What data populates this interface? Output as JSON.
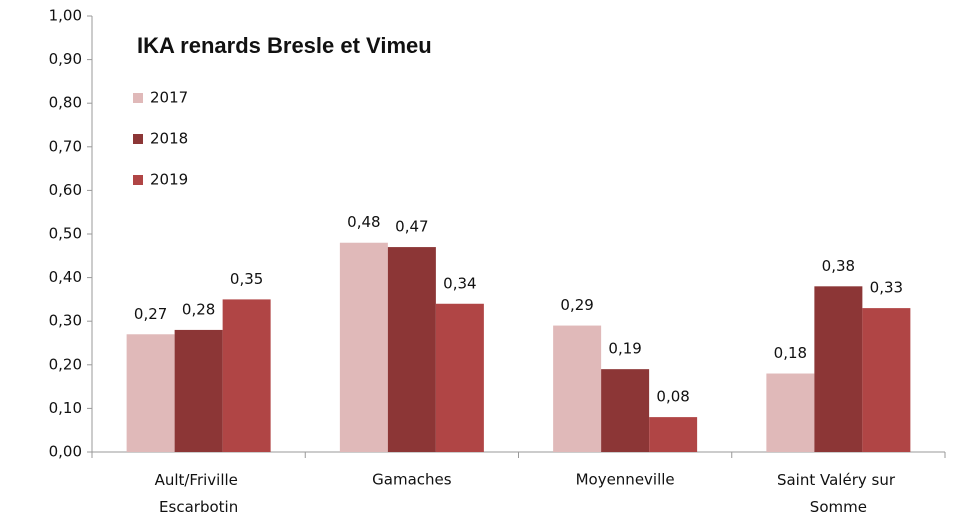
{
  "chart_data": {
    "type": "bar",
    "title": "IKA renards Bresle et Vimeu",
    "categories": [
      "Ault/Friville Escarbotin",
      "Gamaches",
      "Moyenneville",
      "Saint Valéry sur Somme"
    ],
    "series": [
      {
        "name": "2017",
        "color": "#e0b9b9",
        "values": [
          0.27,
          0.48,
          0.29,
          0.18
        ],
        "value_labels": [
          "0,27",
          "0,48",
          "0,29",
          "0,18"
        ]
      },
      {
        "name": "2018",
        "color": "#8c3636",
        "values": [
          0.28,
          0.47,
          0.19,
          0.38
        ],
        "value_labels": [
          "0,28",
          "0,47",
          "0,19",
          "0,38"
        ]
      },
      {
        "name": "2019",
        "color": "#b04545",
        "values": [
          0.35,
          0.34,
          0.08,
          0.33
        ],
        "value_labels": [
          "0,35",
          "0,34",
          "0,08",
          "0,33"
        ]
      }
    ],
    "ylim": [
      0,
      1
    ],
    "yticks": [
      {
        "value": 0,
        "label": "0,00"
      },
      {
        "value": 0.1,
        "label": "0,10"
      },
      {
        "value": 0.2,
        "label": "0,20"
      },
      {
        "value": 0.3,
        "label": "0,30"
      },
      {
        "value": 0.4,
        "label": "0,40"
      },
      {
        "value": 0.5,
        "label": "0,50"
      },
      {
        "value": 0.6,
        "label": "0,60"
      },
      {
        "value": 0.7,
        "label": "0,70"
      },
      {
        "value": 0.8,
        "label": "0,80"
      },
      {
        "value": 0.9,
        "label": "0,90"
      },
      {
        "value": 1,
        "label": "1,00"
      }
    ],
    "grid": false,
    "legend": "upper left"
  }
}
